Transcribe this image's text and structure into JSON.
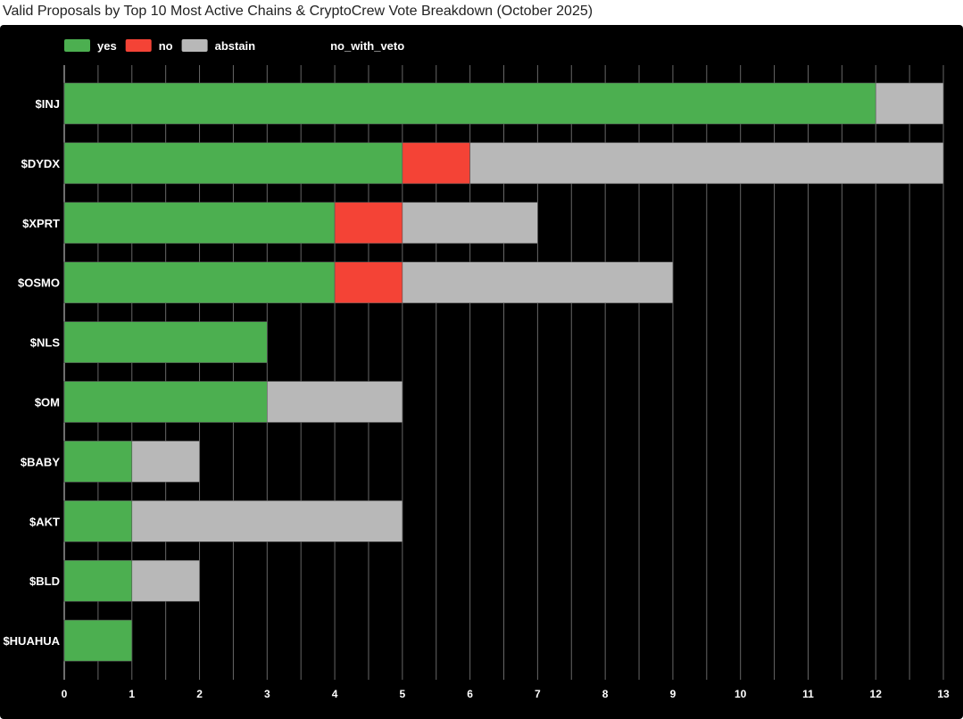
{
  "chart_data": {
    "type": "bar",
    "orientation": "horizontal",
    "stacked": true,
    "title": "Valid Proposals by Top 10 Most Active Chains & CryptoCrew Vote Breakdown (October 2025)",
    "categories": [
      "$INJ",
      "$DYDX",
      "$XPRT",
      "$OSMO",
      "$NLS",
      "$OM",
      "$BABY",
      "$AKT",
      "$BLD",
      "$HUAHUA"
    ],
    "series": [
      {
        "name": "yes",
        "color": "#4caf50",
        "values": [
          12,
          5,
          4,
          4,
          3,
          3,
          1,
          1,
          1,
          1
        ]
      },
      {
        "name": "no",
        "color": "#f44336",
        "values": [
          0,
          1,
          1,
          1,
          0,
          0,
          0,
          0,
          0,
          0
        ]
      },
      {
        "name": "abstain",
        "color": "#b8b8b8",
        "values": [
          1,
          7,
          2,
          4,
          0,
          2,
          1,
          4,
          1,
          0
        ]
      },
      {
        "name": "no_with_veto",
        "color": "transparent",
        "values": [
          0,
          0,
          0,
          0,
          0,
          0,
          0,
          0,
          0,
          0
        ]
      }
    ],
    "xlim": [
      0,
      13
    ],
    "xticks": [
      "0",
      "1",
      "2",
      "3",
      "4",
      "5",
      "6",
      "7",
      "8",
      "9",
      "10",
      "11",
      "12",
      "13"
    ],
    "grid": true,
    "legend": "top-left",
    "background": "#000000"
  }
}
